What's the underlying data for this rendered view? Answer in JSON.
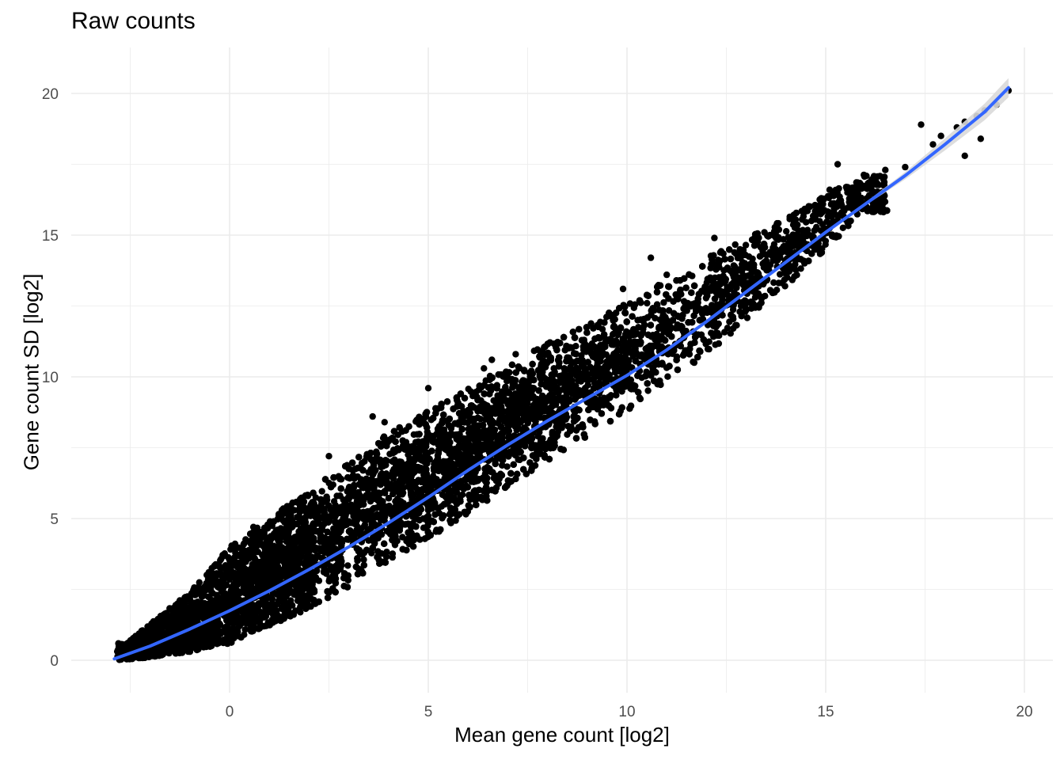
{
  "chart_data": {
    "type": "scatter",
    "title": "Raw counts",
    "xlabel": "Mean gene count [log2]",
    "ylabel": "Gene count SD [log2]",
    "xlim": [
      -3.0,
      20.5
    ],
    "ylim": [
      -0.6,
      21.5
    ],
    "x_ticks": [
      0,
      5,
      10,
      15,
      20
    ],
    "y_ticks": [
      0,
      5,
      10,
      15,
      20
    ],
    "grid": true,
    "point_color": "#000000",
    "smooth_color": "#3366ff",
    "band_color": "#d9d9d9",
    "point_cloud": {
      "x_range": [
        -2.9,
        19.6
      ],
      "description_band": [
        {
          "x": -2.6,
          "y_low": 0.0,
          "y_high": 0.6
        },
        {
          "x": -1.0,
          "y_low": 0.3,
          "y_high": 2.4
        },
        {
          "x": 0.0,
          "y_low": 0.6,
          "y_high": 4.0
        },
        {
          "x": 2.0,
          "y_low": 1.8,
          "y_high": 6.0
        },
        {
          "x": 4.0,
          "y_low": 3.4,
          "y_high": 8.0
        },
        {
          "x": 6.0,
          "y_low": 5.2,
          "y_high": 9.6
        },
        {
          "x": 8.0,
          "y_low": 7.0,
          "y_high": 11.2
        },
        {
          "x": 10.0,
          "y_low": 8.8,
          "y_high": 12.6
        },
        {
          "x": 12.0,
          "y_low": 10.8,
          "y_high": 14.2
        },
        {
          "x": 14.0,
          "y_low": 13.2,
          "y_high": 15.6
        },
        {
          "x": 16.0,
          "y_low": 15.8,
          "y_high": 17.2
        }
      ],
      "outliers": [
        [
          17.4,
          18.9
        ],
        [
          17.9,
          18.5
        ],
        [
          18.3,
          18.8
        ],
        [
          18.5,
          19.0
        ],
        [
          18.5,
          17.8
        ],
        [
          18.8,
          19.2
        ],
        [
          18.9,
          18.4
        ],
        [
          19.0,
          19.4
        ],
        [
          19.3,
          19.6
        ],
        [
          19.6,
          20.1
        ],
        [
          15.1,
          16.6
        ],
        [
          15.3,
          17.5
        ],
        [
          14.2,
          15.5
        ],
        [
          13.6,
          15.0
        ],
        [
          12.2,
          14.9
        ],
        [
          10.6,
          14.2
        ],
        [
          11.0,
          13.6
        ],
        [
          9.9,
          13.1
        ],
        [
          7.2,
          10.8
        ],
        [
          6.6,
          10.6
        ],
        [
          6.4,
          10.3
        ],
        [
          5.0,
          9.6
        ],
        [
          3.6,
          8.6
        ],
        [
          3.9,
          8.4
        ],
        [
          2.5,
          7.2
        ],
        [
          0.6,
          4.7
        ],
        [
          16.2,
          17.0
        ],
        [
          16.5,
          17.3
        ],
        [
          17.0,
          17.4
        ],
        [
          15.8,
          16.3
        ],
        [
          17.7,
          18.2
        ]
      ]
    },
    "smooth_line": {
      "x": [
        -2.9,
        -2.0,
        -1.0,
        0.0,
        1.0,
        2.0,
        3.0,
        4.0,
        5.0,
        6.0,
        7.0,
        8.0,
        9.0,
        10.0,
        11.0,
        12.0,
        13.0,
        14.0,
        15.0,
        16.0,
        17.0,
        18.0,
        19.0,
        19.6
      ],
      "y": [
        0.05,
        0.5,
        1.1,
        1.75,
        2.45,
        3.2,
        4.0,
        4.85,
        5.75,
        6.7,
        7.6,
        8.45,
        9.25,
        10.05,
        10.95,
        11.95,
        13.0,
        14.05,
        15.1,
        16.1,
        17.1,
        18.2,
        19.35,
        20.2
      ]
    }
  }
}
